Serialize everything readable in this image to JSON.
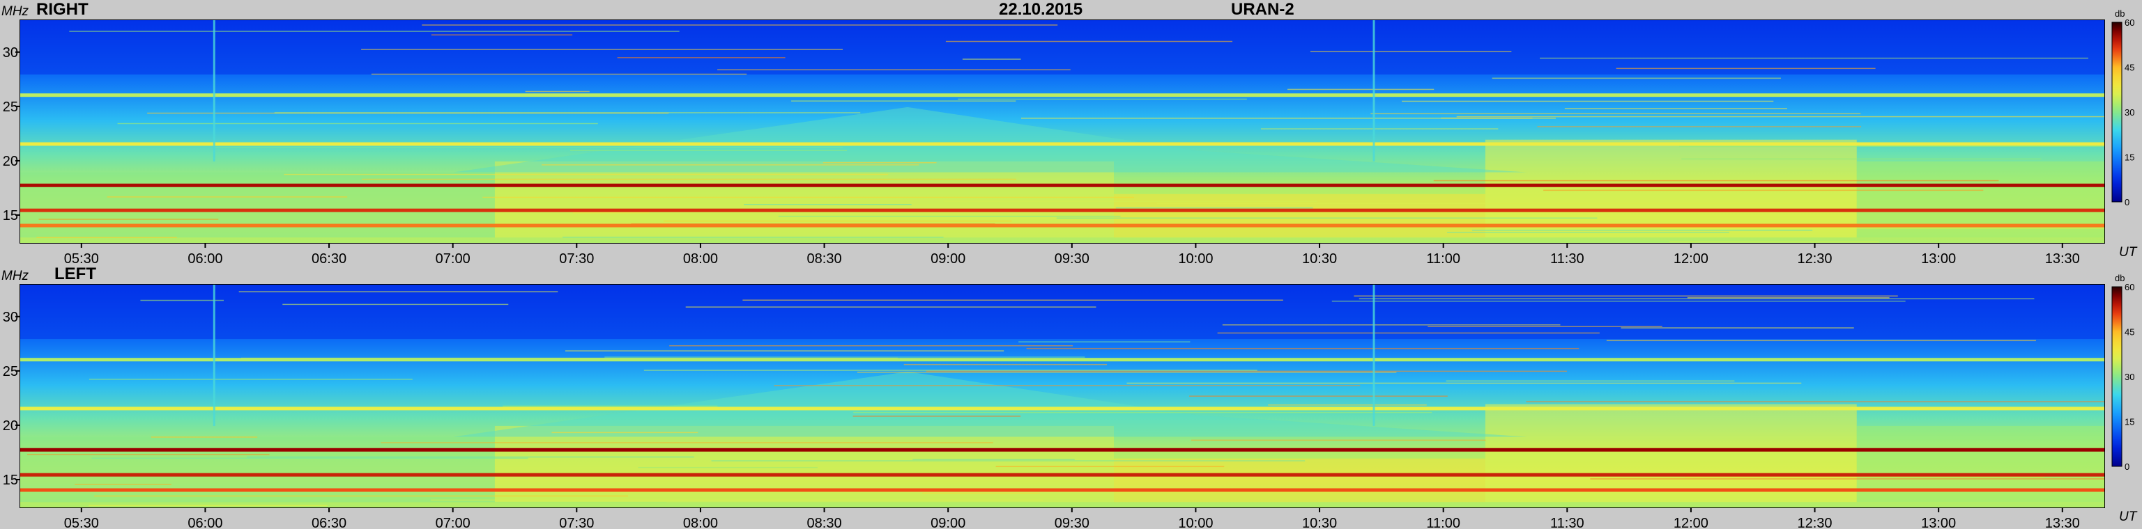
{
  "header": {
    "date": "22.10.2015",
    "instrument": "URAN-2"
  },
  "chart_data": [
    {
      "type": "heatmap",
      "title": "RIGHT",
      "ylabel": "MHz",
      "xlabel": "UT",
      "x_ticks": [
        "05:30",
        "06:00",
        "06:30",
        "07:00",
        "07:30",
        "08:00",
        "08:30",
        "09:00",
        "09:30",
        "10:00",
        "10:30",
        "11:00",
        "11:30",
        "12:00",
        "12:30",
        "13:00",
        "13:30"
      ],
      "x_range": [
        "05:15",
        "13:40"
      ],
      "y_ticks": [
        15,
        20,
        25,
        30
      ],
      "ylim": [
        12.5,
        33
      ],
      "colorbar": {
        "label": "db",
        "ticks": [
          0,
          15,
          30,
          45,
          60
        ],
        "range": [
          0,
          60
        ]
      },
      "colors": {
        "low": "#0a2fd6",
        "mid": "#48d8e8",
        "high": "#ffe640",
        "max": "#6a0000"
      },
      "bands_mhz": [
        {
          "freq": 17.8,
          "level_db": 55
        },
        {
          "freq": 15.5,
          "level_db": 52
        },
        {
          "freq": 14.1,
          "level_db": 48
        },
        {
          "freq": 21.6,
          "level_db": 38
        },
        {
          "freq": 26.1,
          "level_db": 34
        }
      ]
    },
    {
      "type": "heatmap",
      "title": "LEFT",
      "ylabel": "MHz",
      "xlabel": "UT",
      "x_ticks": [
        "05:30",
        "06:00",
        "06:30",
        "07:00",
        "07:30",
        "08:00",
        "08:30",
        "09:00",
        "09:30",
        "10:00",
        "10:30",
        "11:00",
        "11:30",
        "12:00",
        "12:30",
        "13:00",
        "13:30"
      ],
      "x_range": [
        "05:15",
        "13:40"
      ],
      "y_ticks": [
        15,
        20,
        25,
        30
      ],
      "ylim": [
        12.5,
        33
      ],
      "colorbar": {
        "label": "db",
        "ticks": [
          0,
          15,
          30,
          45,
          60
        ],
        "range": [
          0,
          60
        ]
      },
      "colors": {
        "low": "#0a2fd6",
        "mid": "#48d8e8",
        "high": "#ffe640",
        "max": "#6a0000"
      },
      "bands_mhz": [
        {
          "freq": 17.8,
          "level_db": 56
        },
        {
          "freq": 15.5,
          "level_db": 53
        },
        {
          "freq": 14.1,
          "level_db": 50
        },
        {
          "freq": 21.6,
          "level_db": 37
        },
        {
          "freq": 26.1,
          "level_db": 33
        }
      ]
    }
  ]
}
